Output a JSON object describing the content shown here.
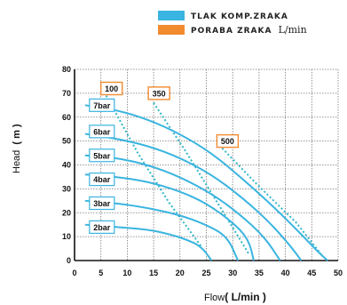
{
  "legend": [
    {
      "label": "TLAK KOMP.ZRAKA",
      "unit": "",
      "color": "#3ab4e0"
    },
    {
      "label": "PORABA ZRAKA",
      "unit": "L/min",
      "color": "#f28a30"
    }
  ],
  "chart_data": {
    "type": "line",
    "xlabel_main": "Flow",
    "xlabel_unit": "( L/min )",
    "ylabel_main": "Head",
    "ylabel_unit": "( m )",
    "xlim": [
      0,
      50
    ],
    "ylim": [
      0,
      80
    ],
    "xticks": [
      0,
      5,
      10,
      15,
      20,
      25,
      30,
      35,
      40,
      45,
      50
    ],
    "yticks": [
      0,
      10,
      20,
      30,
      40,
      50,
      60,
      70,
      80
    ],
    "grid": true,
    "legend_position": "top-right",
    "colors": {
      "pressure": "#3ab4e0",
      "air": "#2fb7c7",
      "label_border": "#3ab4e0",
      "air_label_border": "#f28a30"
    },
    "pressure_series": [
      {
        "name": "2bar",
        "label_at": [
          3,
          14
        ],
        "points": [
          [
            2,
            15
          ],
          [
            8,
            14
          ],
          [
            14,
            13
          ],
          [
            18,
            11
          ],
          [
            21,
            9
          ],
          [
            24,
            6
          ],
          [
            26,
            0
          ]
        ]
      },
      {
        "name": "3bar",
        "label_at": [
          3,
          24
        ],
        "points": [
          [
            2,
            25
          ],
          [
            8,
            24
          ],
          [
            14,
            22
          ],
          [
            20,
            19
          ],
          [
            25,
            15
          ],
          [
            29,
            10
          ],
          [
            31,
            0
          ]
        ]
      },
      {
        "name": "4bar",
        "label_at": [
          3,
          34
        ],
        "points": [
          [
            2,
            36
          ],
          [
            8,
            35
          ],
          [
            14,
            33
          ],
          [
            20,
            29
          ],
          [
            25,
            24
          ],
          [
            30,
            16
          ],
          [
            33,
            9
          ],
          [
            34,
            0
          ]
        ]
      },
      {
        "name": "5bar",
        "label_at": [
          3,
          44
        ],
        "points": [
          [
            2,
            44
          ],
          [
            8,
            43
          ],
          [
            14,
            40
          ],
          [
            20,
            35
          ],
          [
            26,
            28
          ],
          [
            31,
            20
          ],
          [
            36,
            10
          ],
          [
            39,
            0
          ]
        ]
      },
      {
        "name": "6bar",
        "label_at": [
          3,
          54
        ],
        "points": [
          [
            2,
            53
          ],
          [
            8,
            51
          ],
          [
            14,
            48
          ],
          [
            20,
            43
          ],
          [
            26,
            36
          ],
          [
            32,
            26
          ],
          [
            37,
            16
          ],
          [
            41,
            6
          ],
          [
            43,
            0
          ]
        ]
      },
      {
        "name": "7bar",
        "label_at": [
          3,
          65
        ],
        "points": [
          [
            2,
            65
          ],
          [
            8,
            63
          ],
          [
            14,
            59
          ],
          [
            20,
            53
          ],
          [
            26,
            45
          ],
          [
            32,
            34
          ],
          [
            38,
            22
          ],
          [
            43,
            11
          ],
          [
            46,
            4
          ],
          [
            48,
            0
          ]
        ]
      }
    ],
    "air_series": [
      {
        "name": "100",
        "label_at": [
          5,
          72
        ],
        "points": [
          [
            6,
            69
          ],
          [
            12,
            45
          ],
          [
            18,
            24
          ],
          [
            24,
            6
          ]
        ]
      },
      {
        "name": "350",
        "label_at": [
          14,
          70
        ],
        "points": [
          [
            15,
            66
          ],
          [
            21,
            46
          ],
          [
            28,
            21
          ],
          [
            33,
            3
          ]
        ]
      },
      {
        "name": "500",
        "label_at": [
          27,
          50
        ],
        "points": [
          [
            28,
            47
          ],
          [
            35,
            31
          ],
          [
            42,
            16
          ],
          [
            47,
            2
          ]
        ]
      }
    ]
  }
}
